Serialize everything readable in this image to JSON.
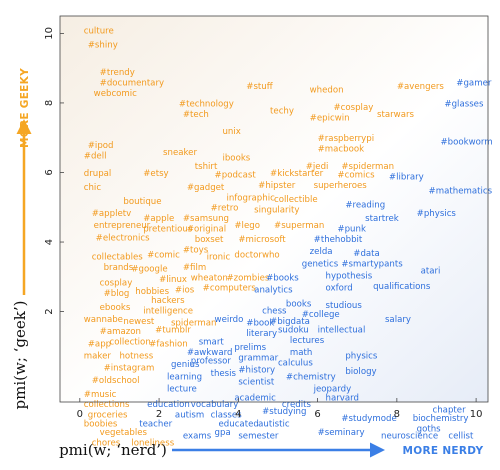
{
  "chart_data": {
    "type": "scatter",
    "xlabel": "pmi(w; ‘nerd’)",
    "ylabel": "pmi(w; ‘geek’)",
    "xlim": [
      -0.5,
      10.3
    ],
    "ylim": [
      -0.6,
      10.5
    ],
    "xticks": [
      0,
      2,
      4,
      6,
      8,
      10
    ],
    "yticks": [
      2,
      4,
      6,
      8,
      10
    ],
    "grid": false,
    "arrows": {
      "x": {
        "label": "MORE NERDY",
        "color": "#3b7fe6"
      },
      "y": {
        "label": "MORE GEEKY",
        "color": "#f5a623"
      }
    },
    "colors": {
      "geek": "#f29a1e",
      "nerd": "#2e6fdc"
    },
    "words": [
      {
        "t": "culture",
        "x": 0.1,
        "y": 10.0,
        "c": "geek"
      },
      {
        "t": "#shiny",
        "x": 0.2,
        "y": 9.6,
        "c": "geek"
      },
      {
        "t": "#trendy",
        "x": 0.5,
        "y": 8.8,
        "c": "geek"
      },
      {
        "t": "#documentary",
        "x": 0.5,
        "y": 8.5,
        "c": "geek"
      },
      {
        "t": "webcomic",
        "x": 0.35,
        "y": 8.2,
        "c": "geek"
      },
      {
        "t": "#technology",
        "x": 2.5,
        "y": 7.9,
        "c": "geek"
      },
      {
        "t": "#tech",
        "x": 2.6,
        "y": 7.6,
        "c": "geek"
      },
      {
        "t": "#stuff",
        "x": 4.2,
        "y": 8.4,
        "c": "geek"
      },
      {
        "t": "techy",
        "x": 4.8,
        "y": 7.7,
        "c": "geek"
      },
      {
        "t": "whedon",
        "x": 5.8,
        "y": 8.3,
        "c": "geek"
      },
      {
        "t": "#cosplay",
        "x": 6.4,
        "y": 7.8,
        "c": "geek"
      },
      {
        "t": "#epicwin",
        "x": 5.8,
        "y": 7.5,
        "c": "geek"
      },
      {
        "t": "starwars",
        "x": 7.5,
        "y": 7.6,
        "c": "geek"
      },
      {
        "t": "#avengers",
        "x": 8.0,
        "y": 8.4,
        "c": "geek"
      },
      {
        "t": "#gamer",
        "x": 9.5,
        "y": 8.5,
        "c": "nerd"
      },
      {
        "t": "#glasses",
        "x": 9.2,
        "y": 7.9,
        "c": "nerd"
      },
      {
        "t": "unix",
        "x": 3.6,
        "y": 7.1,
        "c": "geek"
      },
      {
        "t": "#raspberrypi",
        "x": 6.0,
        "y": 6.9,
        "c": "geek"
      },
      {
        "t": "#macbook",
        "x": 6.0,
        "y": 6.6,
        "c": "geek"
      },
      {
        "t": "#bookworm",
        "x": 9.1,
        "y": 6.8,
        "c": "nerd"
      },
      {
        "t": "#ipod",
        "x": 0.2,
        "y": 6.7,
        "c": "geek"
      },
      {
        "t": "#dell",
        "x": 0.1,
        "y": 6.4,
        "c": "geek"
      },
      {
        "t": "sneaker",
        "x": 2.1,
        "y": 6.5,
        "c": "geek"
      },
      {
        "t": "ibooks",
        "x": 3.6,
        "y": 6.35,
        "c": "geek"
      },
      {
        "t": "tshirt",
        "x": 2.9,
        "y": 6.1,
        "c": "geek"
      },
      {
        "t": "#jedi",
        "x": 5.7,
        "y": 6.1,
        "c": "geek"
      },
      {
        "t": "#spiderman",
        "x": 6.6,
        "y": 6.1,
        "c": "geek"
      },
      {
        "t": "drupal",
        "x": 0.1,
        "y": 5.9,
        "c": "geek"
      },
      {
        "t": "#etsy",
        "x": 1.6,
        "y": 5.9,
        "c": "geek"
      },
      {
        "t": "#podcast",
        "x": 3.4,
        "y": 5.85,
        "c": "geek"
      },
      {
        "t": "#kickstarter",
        "x": 4.8,
        "y": 5.9,
        "c": "geek"
      },
      {
        "t": "#comics",
        "x": 6.5,
        "y": 5.85,
        "c": "geek"
      },
      {
        "t": "#library",
        "x": 7.8,
        "y": 5.8,
        "c": "nerd"
      },
      {
        "t": "chic",
        "x": 0.1,
        "y": 5.5,
        "c": "geek"
      },
      {
        "t": "#gadget",
        "x": 2.7,
        "y": 5.5,
        "c": "geek"
      },
      {
        "t": "#hipster",
        "x": 4.5,
        "y": 5.55,
        "c": "geek"
      },
      {
        "t": "superheroes",
        "x": 5.9,
        "y": 5.55,
        "c": "geek"
      },
      {
        "t": "#mathematics",
        "x": 8.8,
        "y": 5.4,
        "c": "nerd"
      },
      {
        "t": "infographic",
        "x": 3.7,
        "y": 5.2,
        "c": "geek"
      },
      {
        "t": "collectible",
        "x": 4.9,
        "y": 5.15,
        "c": "geek"
      },
      {
        "t": "boutique",
        "x": 1.1,
        "y": 5.1,
        "c": "geek"
      },
      {
        "t": "#retro",
        "x": 3.3,
        "y": 4.9,
        "c": "geek"
      },
      {
        "t": "singularity",
        "x": 4.4,
        "y": 4.85,
        "c": "geek"
      },
      {
        "t": "#reading",
        "x": 6.7,
        "y": 5.0,
        "c": "nerd"
      },
      {
        "t": "#appletv",
        "x": 0.3,
        "y": 4.75,
        "c": "geek"
      },
      {
        "t": "#apple",
        "x": 1.6,
        "y": 4.6,
        "c": "geek"
      },
      {
        "t": "#samsung",
        "x": 2.6,
        "y": 4.6,
        "c": "geek"
      },
      {
        "t": "startrek",
        "x": 7.2,
        "y": 4.6,
        "c": "nerd"
      },
      {
        "t": "#physics",
        "x": 8.5,
        "y": 4.75,
        "c": "nerd"
      },
      {
        "t": "entrepreneur",
        "x": 0.35,
        "y": 4.4,
        "c": "geek"
      },
      {
        "t": "pretentious",
        "x": 1.6,
        "y": 4.3,
        "c": "geek"
      },
      {
        "t": "#original",
        "x": 2.7,
        "y": 4.3,
        "c": "geek"
      },
      {
        "t": "#lego",
        "x": 3.9,
        "y": 4.4,
        "c": "geek"
      },
      {
        "t": "#superman",
        "x": 4.9,
        "y": 4.4,
        "c": "geek"
      },
      {
        "t": "#punk",
        "x": 6.5,
        "y": 4.3,
        "c": "nerd"
      },
      {
        "t": "#electronics",
        "x": 0.4,
        "y": 4.05,
        "c": "geek"
      },
      {
        "t": "boxset",
        "x": 2.9,
        "y": 4.0,
        "c": "geek"
      },
      {
        "t": "#microsoft",
        "x": 4.0,
        "y": 4.0,
        "c": "geek"
      },
      {
        "t": "#thehobbit",
        "x": 5.9,
        "y": 4.0,
        "c": "nerd"
      },
      {
        "t": "#toys",
        "x": 2.6,
        "y": 3.7,
        "c": "geek"
      },
      {
        "t": "zelda",
        "x": 5.8,
        "y": 3.65,
        "c": "nerd"
      },
      {
        "t": "#data",
        "x": 6.9,
        "y": 3.6,
        "c": "nerd"
      },
      {
        "t": "collectables",
        "x": 0.3,
        "y": 3.5,
        "c": "geek"
      },
      {
        "t": "#comic",
        "x": 1.7,
        "y": 3.55,
        "c": "geek"
      },
      {
        "t": "ironic",
        "x": 3.2,
        "y": 3.5,
        "c": "geek"
      },
      {
        "t": "doctorwho",
        "x": 3.9,
        "y": 3.55,
        "c": "geek"
      },
      {
        "t": "genetics",
        "x": 5.6,
        "y": 3.3,
        "c": "nerd"
      },
      {
        "t": "#smartypants",
        "x": 6.6,
        "y": 3.3,
        "c": "nerd"
      },
      {
        "t": "brands",
        "x": 0.6,
        "y": 3.2,
        "c": "geek"
      },
      {
        "t": "#google",
        "x": 1.3,
        "y": 3.15,
        "c": "geek"
      },
      {
        "t": "#film",
        "x": 2.6,
        "y": 3.2,
        "c": "geek"
      },
      {
        "t": "atari",
        "x": 8.6,
        "y": 3.1,
        "c": "nerd"
      },
      {
        "t": "#linux",
        "x": 2.0,
        "y": 2.85,
        "c": "geek"
      },
      {
        "t": "wheaton",
        "x": 2.8,
        "y": 2.9,
        "c": "geek"
      },
      {
        "t": "#zombies",
        "x": 3.7,
        "y": 2.9,
        "c": "geek"
      },
      {
        "t": "#books",
        "x": 4.7,
        "y": 2.9,
        "c": "nerd"
      },
      {
        "t": "hypothesis",
        "x": 6.2,
        "y": 2.95,
        "c": "nerd"
      },
      {
        "t": "cosplay",
        "x": 0.5,
        "y": 2.75,
        "c": "geek"
      },
      {
        "t": "#blog",
        "x": 0.6,
        "y": 2.45,
        "c": "geek"
      },
      {
        "t": "hobbies",
        "x": 1.4,
        "y": 2.5,
        "c": "geek"
      },
      {
        "t": "#ios",
        "x": 2.4,
        "y": 2.55,
        "c": "geek"
      },
      {
        "t": "#computers",
        "x": 3.1,
        "y": 2.6,
        "c": "geek"
      },
      {
        "t": "analytics",
        "x": 4.4,
        "y": 2.55,
        "c": "nerd"
      },
      {
        "t": "oxford",
        "x": 6.2,
        "y": 2.6,
        "c": "nerd"
      },
      {
        "t": "qualifications",
        "x": 7.4,
        "y": 2.65,
        "c": "nerd"
      },
      {
        "t": "hackers",
        "x": 1.8,
        "y": 2.25,
        "c": "geek"
      },
      {
        "t": "books",
        "x": 5.2,
        "y": 2.15,
        "c": "nerd"
      },
      {
        "t": "studious",
        "x": 6.2,
        "y": 2.1,
        "c": "nerd"
      },
      {
        "t": "ebooks",
        "x": 0.5,
        "y": 2.05,
        "c": "geek"
      },
      {
        "t": "intelligence",
        "x": 1.6,
        "y": 1.95,
        "c": "geek"
      },
      {
        "t": "chess",
        "x": 4.6,
        "y": 1.95,
        "c": "nerd"
      },
      {
        "t": "#college",
        "x": 5.6,
        "y": 1.85,
        "c": "nerd"
      },
      {
        "t": "#bigdata",
        "x": 4.8,
        "y": 1.65,
        "c": "nerd"
      },
      {
        "t": "wannabe",
        "x": 0.1,
        "y": 1.7,
        "c": "geek"
      },
      {
        "t": "newest",
        "x": 1.1,
        "y": 1.65,
        "c": "geek"
      },
      {
        "t": "spiderman",
        "x": 2.3,
        "y": 1.6,
        "c": "geek"
      },
      {
        "t": "weirdo",
        "x": 3.4,
        "y": 1.7,
        "c": "nerd"
      },
      {
        "t": "#book",
        "x": 4.2,
        "y": 1.6,
        "c": "nerd"
      },
      {
        "t": "sudoku",
        "x": 5.0,
        "y": 1.4,
        "c": "nerd"
      },
      {
        "t": "intellectual",
        "x": 6.0,
        "y": 1.4,
        "c": "nerd"
      },
      {
        "t": "salary",
        "x": 7.7,
        "y": 1.7,
        "c": "nerd"
      },
      {
        "t": "#amazon",
        "x": 0.5,
        "y": 1.35,
        "c": "geek"
      },
      {
        "t": "#tumblr",
        "x": 1.9,
        "y": 1.4,
        "c": "geek"
      },
      {
        "t": "literary",
        "x": 4.2,
        "y": 1.3,
        "c": "nerd"
      },
      {
        "t": "lectures",
        "x": 5.3,
        "y": 1.1,
        "c": "nerd"
      },
      {
        "t": "#app",
        "x": 0.2,
        "y": 1.0,
        "c": "geek"
      },
      {
        "t": "collection",
        "x": 0.75,
        "y": 1.05,
        "c": "geek"
      },
      {
        "t": "#fashion",
        "x": 1.75,
        "y": 1.0,
        "c": "geek"
      },
      {
        "t": "smart",
        "x": 3.0,
        "y": 1.05,
        "c": "nerd"
      },
      {
        "t": "prelims",
        "x": 3.9,
        "y": 0.9,
        "c": "nerd"
      },
      {
        "t": "math",
        "x": 5.3,
        "y": 0.75,
        "c": "nerd"
      },
      {
        "t": "physics",
        "x": 6.7,
        "y": 0.65,
        "c": "nerd"
      },
      {
        "t": "maker",
        "x": 0.1,
        "y": 0.65,
        "c": "geek"
      },
      {
        "t": "hotness",
        "x": 1.0,
        "y": 0.65,
        "c": "geek"
      },
      {
        "t": "#awkward",
        "x": 2.7,
        "y": 0.75,
        "c": "nerd"
      },
      {
        "t": "grammar",
        "x": 4.0,
        "y": 0.6,
        "c": "nerd"
      },
      {
        "t": "calculus",
        "x": 5.0,
        "y": 0.45,
        "c": "nerd"
      },
      {
        "t": "#instagram",
        "x": 0.6,
        "y": 0.3,
        "c": "geek"
      },
      {
        "t": "genius",
        "x": 2.3,
        "y": 0.4,
        "c": "nerd"
      },
      {
        "t": "professor",
        "x": 2.8,
        "y": 0.5,
        "c": "nerd"
      },
      {
        "t": "#history",
        "x": 4.0,
        "y": 0.25,
        "c": "nerd"
      },
      {
        "t": "biology",
        "x": 6.7,
        "y": 0.2,
        "c": "nerd"
      },
      {
        "t": "learning",
        "x": 2.2,
        "y": 0.05,
        "c": "nerd"
      },
      {
        "t": "thesis",
        "x": 3.3,
        "y": 0.15,
        "c": "nerd"
      },
      {
        "t": "#chemistry",
        "x": 5.2,
        "y": 0.05,
        "c": "nerd"
      },
      {
        "t": "#oldschool",
        "x": 0.3,
        "y": -0.05,
        "c": "geek"
      },
      {
        "t": "lecture",
        "x": 2.2,
        "y": -0.3,
        "c": "nerd"
      },
      {
        "t": "scientist",
        "x": 4.0,
        "y": -0.1,
        "c": "nerd"
      },
      {
        "t": "jeopardy",
        "x": 5.9,
        "y": -0.3,
        "c": "nerd"
      },
      {
        "t": "#music",
        "x": 0.1,
        "y": -0.45,
        "c": "geek"
      },
      {
        "t": "academic",
        "x": 3.9,
        "y": -0.55,
        "c": "nerd"
      },
      {
        "t": "harvard",
        "x": 6.2,
        "y": -0.55,
        "c": "nerd"
      },
      {
        "t": "collections",
        "x": 0.1,
        "y": -0.75,
        "c": "geek"
      },
      {
        "t": "education",
        "x": 1.7,
        "y": -0.75,
        "c": "nerd"
      },
      {
        "t": "vocabulary",
        "x": 2.8,
        "y": -0.75,
        "c": "nerd"
      },
      {
        "t": "credits",
        "x": 5.1,
        "y": -0.75,
        "c": "nerd"
      },
      {
        "t": "chapter",
        "x": 8.9,
        "y": -0.9,
        "c": "nerd"
      },
      {
        "t": "groceries",
        "x": 0.2,
        "y": -1.05,
        "c": "geek"
      },
      {
        "t": "autism",
        "x": 2.4,
        "y": -1.05,
        "c": "nerd"
      },
      {
        "t": "classes",
        "x": 3.3,
        "y": -1.05,
        "c": "nerd"
      },
      {
        "t": "#studying",
        "x": 4.6,
        "y": -0.95,
        "c": "nerd"
      },
      {
        "t": "#studymode",
        "x": 6.6,
        "y": -1.15,
        "c": "nerd"
      },
      {
        "t": "biochemistry",
        "x": 8.4,
        "y": -1.15,
        "c": "nerd"
      },
      {
        "t": "boobies",
        "x": 0.1,
        "y": -1.3,
        "c": "geek"
      },
      {
        "t": "teacher",
        "x": 1.5,
        "y": -1.3,
        "c": "nerd"
      },
      {
        "t": "educated",
        "x": 3.5,
        "y": -1.3,
        "c": "nerd"
      },
      {
        "t": "autistic",
        "x": 4.5,
        "y": -1.3,
        "c": "nerd"
      },
      {
        "t": "goths",
        "x": 8.5,
        "y": -1.45,
        "c": "nerd"
      },
      {
        "t": "vegetables",
        "x": 0.5,
        "y": -1.55,
        "c": "geek"
      },
      {
        "t": "exams",
        "x": 2.6,
        "y": -1.65,
        "c": "nerd"
      },
      {
        "t": "gpa",
        "x": 3.4,
        "y": -1.55,
        "c": "nerd"
      },
      {
        "t": "semester",
        "x": 4.0,
        "y": -1.65,
        "c": "nerd"
      },
      {
        "t": "#seminary",
        "x": 6.0,
        "y": -1.55,
        "c": "nerd"
      },
      {
        "t": "neuroscience",
        "x": 7.6,
        "y": -1.65,
        "c": "nerd"
      },
      {
        "t": "cellist",
        "x": 9.3,
        "y": -1.65,
        "c": "nerd"
      },
      {
        "t": "chores",
        "x": 0.3,
        "y": -1.85,
        "c": "geek"
      },
      {
        "t": "loneliness",
        "x": 1.3,
        "y": -1.85,
        "c": "geek"
      }
    ]
  }
}
